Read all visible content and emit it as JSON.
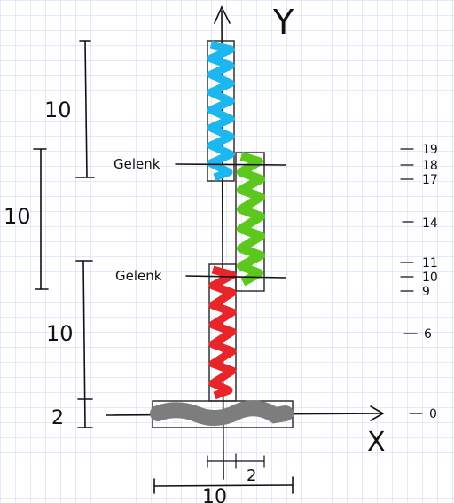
{
  "axes": {
    "y_label": "Y",
    "x_label": "X"
  },
  "joints": {
    "upper": "Gelenk",
    "lower": "Gelenk"
  },
  "left_dimensions": {
    "top": "10",
    "middle": "10",
    "bottom": "10",
    "base": "2"
  },
  "bottom_dimensions": {
    "overall": "10",
    "offset": "2"
  },
  "right_ticks": [
    "19",
    "18",
    "17",
    "14",
    "11",
    "10",
    "9",
    "6",
    "0"
  ],
  "colors": {
    "blue": "#1db7f0",
    "green": "#5cc81e",
    "red": "#e8262a",
    "gray": "#7d7d7d",
    "grid": "#c9d7ec"
  }
}
